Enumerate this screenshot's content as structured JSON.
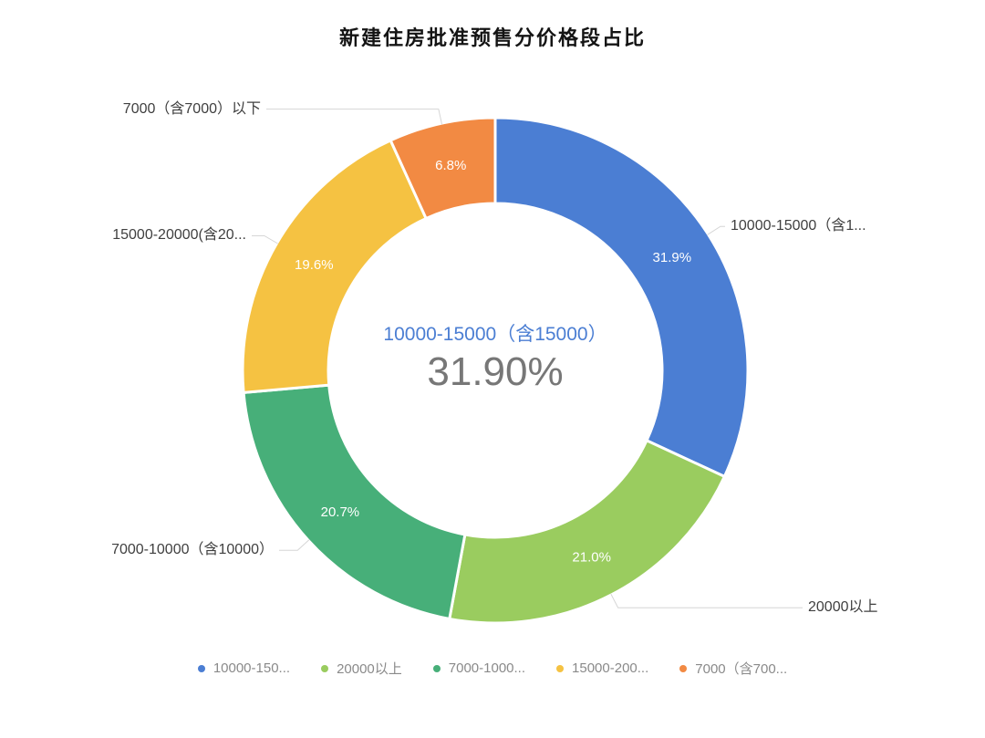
{
  "title": "新建住房批准预售分价格段占比",
  "center_label": {
    "category": "10000-15000（含15000）",
    "value": "31.90%"
  },
  "chart_data": {
    "type": "pie",
    "title": "新建住房批准预售分价格段占比",
    "donut": true,
    "inner_radius_ratio": 0.66,
    "start_angle": "top",
    "direction": "clockwise",
    "legend_position": "bottom",
    "percent_labels_inside": true,
    "leader_line_color": "#d6d6d6",
    "series": [
      {
        "name": "10000-15000（含15000）",
        "value": 31.9,
        "percent_label": "31.9%",
        "outer_label": "10000-15000（含1...",
        "legend_label": "10000-150...",
        "color": "#4b7ed3"
      },
      {
        "name": "20000以上",
        "value": 21.0,
        "percent_label": "21.0%",
        "outer_label": "20000以上",
        "legend_label": "20000以上",
        "color": "#9acc5f"
      },
      {
        "name": "7000-10000（含10000）",
        "value": 20.7,
        "percent_label": "20.7%",
        "outer_label": "7000-10000（含10000）",
        "legend_label": "7000-1000...",
        "color": "#47af79"
      },
      {
        "name": "15000-20000(含20...",
        "value": 19.6,
        "percent_label": "19.6%",
        "outer_label": "15000-20000(含20...",
        "legend_label": "15000-200...",
        "color": "#f5c242"
      },
      {
        "name": "7000（含7000）以下",
        "value": 6.8,
        "percent_label": "6.8%",
        "outer_label": "7000（含7000）以下",
        "legend_label": "7000（含700...",
        "color": "#f28a43"
      }
    ]
  }
}
